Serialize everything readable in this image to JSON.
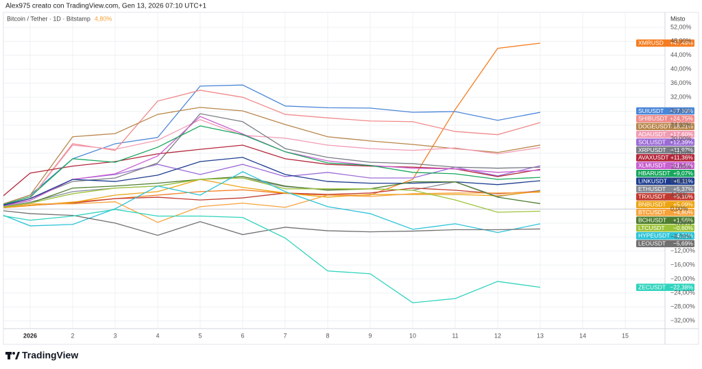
{
  "header": "Alex975 creato con TradingView.com, Gen 13, 2026 07:10 UTC+1",
  "logo": "TradingView",
  "chart_data": {
    "type": "line",
    "symbol": "Bitcoin / Tether · 1D · Bitstamp",
    "symbol_change": "4,80%",
    "scale_label": "Misto",
    "categories": [
      null,
      "2026",
      "2",
      "3",
      "4",
      "5",
      "6",
      "7",
      "8",
      "9",
      "10",
      "11",
      "12",
      "13",
      "14",
      "15"
    ],
    "ylim": [
      -34.2,
      56.3
    ],
    "yticks": [
      {
        "value": 52,
        "label": "52,00%"
      },
      {
        "value": 48,
        "label": "48,00%"
      },
      {
        "value": 44,
        "label": "44,00%"
      },
      {
        "value": 40,
        "label": "40,00%"
      },
      {
        "value": 36,
        "label": "36,00%"
      },
      {
        "value": 32,
        "label": "32,00%"
      },
      {
        "value": 28,
        "label": "28,00%"
      },
      {
        "value": 24,
        "label": "24,00%"
      },
      {
        "value": 20,
        "label": "20,00%"
      },
      {
        "value": 16,
        "label": "16,00%"
      },
      {
        "value": 12,
        "label": "12,00%"
      },
      {
        "value": 8,
        "label": "8,00%"
      },
      {
        "value": 4,
        "label": "4,00%"
      },
      {
        "value": 0,
        "label": "0,00%"
      },
      {
        "value": -4,
        "label": "−4,00%"
      },
      {
        "value": -8,
        "label": "−8,00%"
      },
      {
        "value": -12,
        "label": "−12,00%"
      },
      {
        "value": -16,
        "label": "−16,00%"
      },
      {
        "value": -20,
        "label": "−20,00%"
      },
      {
        "value": -24,
        "label": "−24,00%"
      },
      {
        "value": -28,
        "label": "−28,00%"
      },
      {
        "value": -32,
        "label": "−32,00%"
      }
    ],
    "grid": true,
    "series": [
      {
        "name": "XMRUSD",
        "color": "#f57c1f",
        "values": [
          0,
          1,
          2,
          3,
          4,
          5,
          5.5,
          4.5,
          4,
          4,
          8.5,
          28.5,
          46,
          47.49,
          null,
          null
        ],
        "value_labels": [
          null,
          null,
          null,
          null,
          null,
          null,
          null,
          null,
          null,
          null,
          null,
          null,
          null,
          "+47,49%",
          null,
          null
        ]
      },
      {
        "name": "SUIUSDT",
        "color": "#4a86d8",
        "values": [
          0,
          4,
          14.4,
          18.7,
          20.5,
          35.2,
          35.5,
          29.5,
          29,
          28.9,
          27.7,
          27.9,
          25.4,
          27.69,
          null,
          null
        ],
        "value_labels": [
          null,
          null,
          null,
          null,
          null,
          null,
          null,
          null,
          null,
          null,
          null,
          null,
          null,
          "+27,69%",
          null,
          null
        ]
      },
      {
        "name": "SHIBUSDT",
        "color": "#f08a8a",
        "values": [
          0,
          3,
          18.7,
          16.8,
          30.9,
          34,
          32,
          27.1,
          26.1,
          25.2,
          25,
          22.2,
          21.3,
          24.75,
          null,
          null
        ],
        "value_labels": [
          null,
          null,
          null,
          null,
          null,
          null,
          null,
          null,
          null,
          null,
          null,
          null,
          null,
          "+24,75%",
          null,
          null
        ]
      },
      {
        "name": "DOGEUSDT",
        "color": "#b8864b",
        "values": [
          0,
          4,
          20.7,
          21.6,
          27.1,
          29.1,
          28.1,
          24.2,
          20.7,
          19.5,
          18.5,
          17.3,
          16.2,
          18.31,
          null,
          null
        ],
        "value_labels": [
          null,
          null,
          null,
          null,
          null,
          null,
          null,
          null,
          null,
          null,
          null,
          null,
          null,
          "+18,31%",
          null,
          null
        ]
      },
      {
        "name": "ADAUSDT",
        "color": "#f29cb4",
        "values": [
          0,
          3,
          18.3,
          17.1,
          19.7,
          25.6,
          21.1,
          20.3,
          18.3,
          17.3,
          16.8,
          17.5,
          15.8,
          17.6,
          null,
          null
        ],
        "value_labels": [
          null,
          null,
          null,
          null,
          null,
          null,
          null,
          null,
          null,
          null,
          null,
          null,
          null,
          "+17,60%",
          null,
          null
        ]
      },
      {
        "name": "SOLUSDT",
        "color": "#9b6bd6",
        "values": [
          0,
          2.5,
          8.5,
          9.9,
          12.8,
          9.9,
          12.8,
          9.3,
          10.5,
          8.9,
          8.9,
          12,
          9.5,
          12.39,
          null,
          null
        ],
        "value_labels": [
          null,
          null,
          null,
          null,
          null,
          null,
          null,
          null,
          null,
          null,
          null,
          null,
          null,
          "+12,39%",
          null,
          null
        ]
      },
      {
        "name": "XRPUSDT",
        "color": "#7a7d86",
        "values": [
          0,
          3,
          7.9,
          8.9,
          13.2,
          27.3,
          25,
          17.3,
          14.8,
          13.4,
          13,
          12,
          11.7,
          11.97,
          null,
          null
        ],
        "value_labels": [
          null,
          null,
          null,
          null,
          null,
          null,
          null,
          null,
          null,
          null,
          null,
          null,
          null,
          "+11,97%",
          null,
          null
        ]
      },
      {
        "name": "AVAXUSDT",
        "color": "#b3263a",
        "values": [
          0,
          10.3,
          12.3,
          13.6,
          15.8,
          17.1,
          18.3,
          14.4,
          12.8,
          12.3,
          12,
          11.5,
          9.3,
          11.36,
          null,
          null
        ],
        "value_labels": [
          null,
          null,
          null,
          null,
          null,
          null,
          null,
          null,
          null,
          null,
          null,
          null,
          null,
          "+11,36%",
          null,
          null
        ]
      },
      {
        "name": "XLMUSDT",
        "color": "#c95fd0",
        "values": [
          0,
          2.5,
          8.5,
          10.1,
          15.2,
          26.5,
          21.5,
          16.4,
          13.8,
          12.5,
          11.7,
          11.5,
          10.5,
          11.14,
          null,
          null
        ],
        "value_labels": [
          null,
          null,
          null,
          null,
          null,
          null,
          null,
          null,
          null,
          null,
          null,
          null,
          null,
          "+11,14%",
          null,
          null
        ]
      },
      {
        "name": "HBARUSDT",
        "color": "#17a65c",
        "values": [
          0,
          3.5,
          14.4,
          13.4,
          17.7,
          23.8,
          21.3,
          16.4,
          13.2,
          12.5,
          10.5,
          10.1,
          8.5,
          9.07,
          null,
          null
        ],
        "value_labels": [
          null,
          null,
          null,
          null,
          null,
          null,
          null,
          null,
          null,
          null,
          null,
          null,
          null,
          "+9,07%",
          null,
          null
        ]
      },
      {
        "name": "LINKUSDT",
        "color": "#1d3c8f",
        "values": [
          0,
          3,
          8.5,
          7.9,
          9.7,
          13.6,
          14.8,
          9.9,
          7.9,
          7.4,
          7.4,
          7.8,
          7,
          8.11,
          null,
          null
        ],
        "value_labels": [
          null,
          null,
          null,
          null,
          null,
          null,
          null,
          null,
          null,
          null,
          null,
          null,
          null,
          "+8,11%",
          null,
          null
        ]
      },
      {
        "name": "ETHUSDT",
        "color": "#868b96",
        "values": [
          0,
          2,
          5,
          6,
          6.6,
          8.5,
          8.9,
          6.4,
          5.6,
          5.8,
          5.4,
          7.8,
          3.6,
          5.37,
          null,
          null
        ],
        "value_labels": [
          null,
          null,
          null,
          null,
          null,
          null,
          null,
          null,
          null,
          null,
          null,
          null,
          null,
          "+5,37%",
          null,
          null
        ]
      },
      {
        "name": "TRXUSDT",
        "color": "#c2392f",
        "values": [
          0,
          1.1,
          1.7,
          3,
          3.4,
          2.6,
          3.2,
          4.6,
          4.2,
          4.6,
          6,
          5.4,
          4.4,
          5.1,
          null,
          null
        ],
        "value_labels": [
          null,
          null,
          null,
          null,
          null,
          null,
          null,
          null,
          null,
          null,
          null,
          null,
          null,
          "+5,10%",
          null,
          null
        ]
      },
      {
        "name": "BNBUSDT",
        "color": "#eda412",
        "values": [
          0,
          1.1,
          1.9,
          4,
          5,
          8.5,
          6.2,
          4.6,
          3.4,
          4.2,
          4.2,
          4.2,
          3.8,
          5.09,
          null,
          null
        ],
        "value_labels": [
          null,
          null,
          null,
          null,
          null,
          null,
          null,
          null,
          null,
          null,
          null,
          null,
          null,
          "+5,09%",
          null,
          null
        ]
      },
      {
        "name": "BTCUSDT",
        "color": "#f7a23a",
        "values": [
          0,
          1.5,
          1.5,
          2.1,
          -3.8,
          0.7,
          1.7,
          0.5,
          4,
          3.6,
          4.4,
          4.6,
          4.6,
          4.8,
          null,
          null
        ],
        "value_labels": [
          null,
          null,
          null,
          null,
          null,
          null,
          null,
          null,
          null,
          null,
          null,
          null,
          null,
          "+4,80%",
          null,
          null
        ]
      },
      {
        "name": "BCHUSDT",
        "color": "#4e7d2e",
        "values": [
          0,
          1.7,
          6,
          6.6,
          7.4,
          8.5,
          9.3,
          6.6,
          5.4,
          5.8,
          7.8,
          7.8,
          3.4,
          1.56,
          null,
          null
        ],
        "value_labels": [
          null,
          null,
          null,
          null,
          null,
          null,
          null,
          null,
          null,
          null,
          null,
          null,
          null,
          "+1,56%",
          null,
          null
        ]
      },
      {
        "name": "LTCUSDT",
        "color": "#9cc43b",
        "values": [
          0,
          1.7,
          4.4,
          6,
          6.6,
          8.5,
          8.9,
          5.8,
          5.8,
          5.8,
          5.4,
          2.6,
          -0.9,
          -0.6,
          null,
          null
        ],
        "value_labels": [
          null,
          null,
          null,
          null,
          null,
          null,
          null,
          null,
          null,
          null,
          null,
          null,
          null,
          "−0,60%",
          null,
          null
        ]
      },
      {
        "name": "HYPEUSDT",
        "color": "#2bc3d8",
        "values": [
          0,
          -4.8,
          -4.4,
          0.1,
          6.6,
          4,
          10.7,
          5,
          0.7,
          -1.3,
          -5.8,
          -4.2,
          -6.7,
          -4.21,
          null,
          null
        ],
        "value_labels": [
          null,
          null,
          null,
          null,
          null,
          null,
          null,
          null,
          null,
          null,
          null,
          null,
          null,
          "−4,21%",
          null,
          null
        ]
      },
      {
        "name": "LEOUSDT",
        "color": "#707070",
        "values": [
          0,
          -1.3,
          -1.8,
          -4,
          -7.5,
          -3.6,
          -7.3,
          -5.2,
          -6.2,
          -6.5,
          -6.3,
          -5.9,
          -5.9,
          -5.69,
          null,
          null
        ],
        "value_labels": [
          null,
          null,
          null,
          null,
          null,
          null,
          null,
          null,
          null,
          null,
          null,
          null,
          null,
          "−5,69%",
          null,
          null
        ]
      },
      {
        "name": "ZECUSDT",
        "color": "#2fd3bd",
        "values": [
          -1.2,
          -3.2,
          -2,
          -0.1,
          -2,
          -2,
          -2.4,
          -8.3,
          -17.7,
          -18.5,
          -26.8,
          -25.6,
          -20.7,
          -22.38,
          null,
          null
        ],
        "value_labels": [
          null,
          null,
          null,
          null,
          null,
          null,
          null,
          null,
          null,
          null,
          null,
          null,
          null,
          "−22,38%",
          null,
          null
        ]
      }
    ]
  }
}
